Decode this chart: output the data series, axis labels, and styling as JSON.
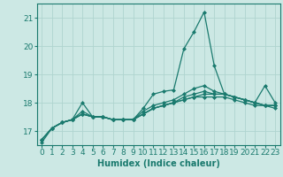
{
  "xlabel": "Humidex (Indice chaleur)",
  "x_values": [
    0,
    1,
    2,
    3,
    4,
    5,
    6,
    7,
    8,
    9,
    10,
    11,
    12,
    13,
    14,
    15,
    16,
    17,
    18,
    19,
    20,
    21,
    22,
    23
  ],
  "series": [
    [
      16.6,
      17.1,
      17.3,
      17.4,
      18.0,
      17.5,
      17.5,
      17.4,
      17.4,
      17.4,
      17.8,
      18.3,
      18.4,
      18.45,
      19.9,
      20.5,
      21.2,
      19.3,
      18.3,
      18.2,
      18.1,
      18.0,
      18.6,
      18.0
    ],
    [
      16.7,
      17.1,
      17.3,
      17.4,
      17.7,
      17.5,
      17.5,
      17.4,
      17.4,
      17.4,
      17.7,
      17.9,
      18.0,
      18.1,
      18.3,
      18.5,
      18.6,
      18.4,
      18.3,
      18.2,
      18.1,
      18.0,
      17.9,
      17.9
    ],
    [
      16.7,
      17.1,
      17.3,
      17.4,
      17.6,
      17.5,
      17.5,
      17.4,
      17.4,
      17.4,
      17.6,
      17.8,
      17.9,
      18.0,
      18.2,
      18.3,
      18.4,
      18.3,
      18.3,
      18.2,
      18.1,
      18.0,
      17.9,
      17.9
    ],
    [
      16.7,
      17.1,
      17.3,
      17.4,
      17.6,
      17.5,
      17.5,
      17.4,
      17.4,
      17.4,
      17.6,
      17.8,
      17.9,
      18.0,
      18.1,
      18.2,
      18.3,
      18.3,
      18.3,
      18.2,
      18.1,
      18.0,
      17.9,
      17.9
    ],
    [
      16.7,
      17.1,
      17.3,
      17.4,
      17.6,
      17.5,
      17.5,
      17.4,
      17.4,
      17.4,
      17.6,
      17.8,
      17.9,
      18.0,
      18.1,
      18.2,
      18.2,
      18.2,
      18.2,
      18.1,
      18.0,
      17.9,
      17.9,
      17.8
    ]
  ],
  "line_color": "#1a7a6e",
  "bg_color": "#cce8e4",
  "grid_color": "#afd4cf",
  "ylim": [
    16.5,
    21.5
  ],
  "yticks": [
    17,
    18,
    19,
    20,
    21
  ],
  "xticks": [
    0,
    1,
    2,
    3,
    4,
    5,
    6,
    7,
    8,
    9,
    10,
    11,
    12,
    13,
    14,
    15,
    16,
    17,
    18,
    19,
    20,
    21,
    22,
    23
  ],
  "marker": "D",
  "markersize": 2.0,
  "linewidth": 0.9,
  "xlabel_fontsize": 7,
  "tick_fontsize": 6.5
}
